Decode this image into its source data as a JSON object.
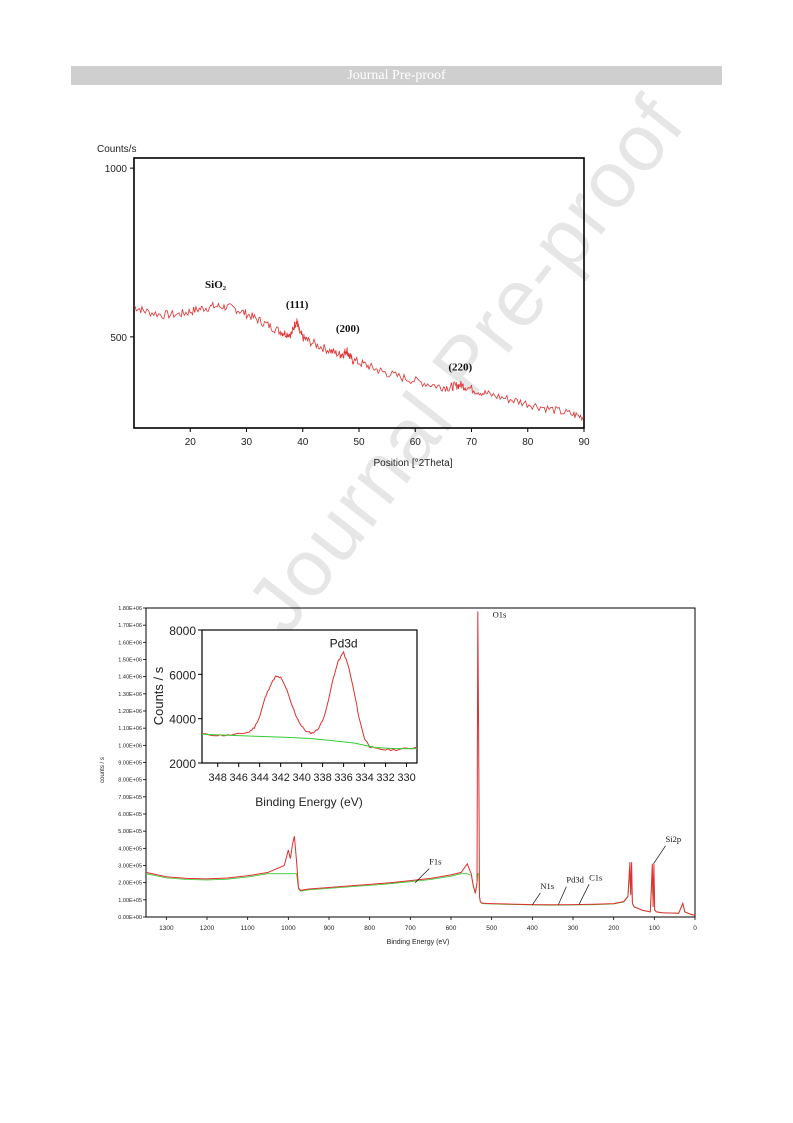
{
  "header": {
    "banner_text": "Journal Pre-proof"
  },
  "watermark_text": "Journal Pre-proof",
  "chart_data": [
    {
      "type": "line",
      "title": "",
      "ylabel": "Counts/s",
      "xlabel": "Position [°2Theta]",
      "xlim": [
        10,
        90
      ],
      "ylim": [
        230,
        1030
      ],
      "xticks": [
        20,
        30,
        40,
        50,
        60,
        70,
        80,
        90
      ],
      "xtick_labels": [
        "20",
        "30",
        "40",
        "50",
        "60",
        "70",
        "80",
        "90"
      ],
      "yticks": [
        500,
        1000
      ],
      "ytick_labels": [
        "500",
        "1000"
      ],
      "grid": false,
      "line_color": "#e03030",
      "series": [
        {
          "x": [
            10,
            12,
            15,
            18,
            20,
            22,
            24,
            26,
            28,
            30,
            32,
            34,
            36,
            37,
            38,
            38.6,
            39,
            39.4,
            40,
            41,
            43,
            45,
            46.5,
            47.3,
            47.8,
            48.3,
            49,
            51,
            53,
            55,
            58,
            61,
            64,
            66,
            67,
            68,
            69,
            71,
            73,
            76,
            79,
            82,
            85,
            88,
            90
          ],
          "y": [
            590,
            576,
            565,
            567,
            575,
            584,
            590,
            590,
            583,
            568,
            551,
            533,
            516,
            510,
            508,
            538,
            545,
            515,
            498,
            488,
            472,
            458,
            448,
            450,
            462,
            442,
            430,
            418,
            404,
            392,
            378,
            366,
            354,
            350,
            354,
            358,
            352,
            340,
            330,
            318,
            306,
            294,
            282,
            270,
            262
          ]
        }
      ],
      "annotations": [
        {
          "text": "SiO₂",
          "x": 24.5,
          "y": 645
        },
        {
          "text": "(111)",
          "x": 39,
          "y": 585
        },
        {
          "text": "(200)",
          "x": 48,
          "y": 515
        },
        {
          "text": "(220)",
          "x": 68,
          "y": 400
        }
      ]
    },
    {
      "type": "line",
      "title": "",
      "ylabel": "counts / s",
      "xlabel": "Binding Energy (eV)",
      "xlim": [
        1350,
        0
      ],
      "ylim": [
        0,
        1800000
      ],
      "xticks": [
        1300,
        1200,
        1100,
        1000,
        900,
        800,
        700,
        600,
        500,
        400,
        300,
        200,
        100,
        0
      ],
      "xtick_labels": [
        "1300",
        "1200",
        "1100",
        "1000",
        "900",
        "800",
        "700",
        "600",
        "500",
        "400",
        "300",
        "200",
        "100",
        "0"
      ],
      "yticks": [
        0,
        100000,
        200000,
        300000,
        400000,
        500000,
        600000,
        700000,
        800000,
        900000,
        1000000,
        1100000,
        1200000,
        1300000,
        1400000,
        1500000,
        1600000,
        1700000,
        1800000
      ],
      "ytick_labels": [
        "0.00E+00",
        "1.00E+05",
        "2.00E+05",
        "3.00E+05",
        "4.00E+05",
        "5.00E+05",
        "6.00E+05",
        "7.00E+05",
        "8.00E+05",
        "9.00E+05",
        "1.00E+06",
        "1.10E+06",
        "1.20E+06",
        "1.30E+06",
        "1.40E+06",
        "1.50E+06",
        "1.60E+06",
        "1.70E+06",
        "1.80E+06"
      ],
      "grid": false,
      "line_color": "#e03030",
      "background_color": "#33cc33",
      "series": [
        {
          "x": [
            1350,
            1300,
            1250,
            1200,
            1150,
            1100,
            1050,
            1010,
            1000,
            995,
            990,
            985,
            980,
            975,
            970,
            950,
            900,
            850,
            800,
            750,
            700,
            650,
            600,
            575,
            560,
            550,
            545,
            540,
            536,
            534,
            532,
            530,
            528,
            525,
            520,
            500,
            450,
            400,
            350,
            300,
            250,
            200,
            175,
            165,
            160,
            158,
            156,
            154,
            150,
            130,
            110,
            105,
            103,
            101,
            99,
            95,
            80,
            40,
            30,
            25,
            10,
            0
          ],
          "y": [
            260000,
            235000,
            225000,
            222000,
            227000,
            240000,
            260000,
            300000,
            390000,
            340000,
            420000,
            470000,
            330000,
            170000,
            155000,
            163000,
            172000,
            181000,
            190000,
            200000,
            212000,
            225000,
            245000,
            260000,
            310000,
            250000,
            180000,
            140000,
            200000,
            1780000,
            1000000,
            120000,
            90000,
            82000,
            80000,
            78000,
            75000,
            72000,
            71000,
            72000,
            74000,
            78000,
            90000,
            120000,
            320000,
            130000,
            320000,
            80000,
            60000,
            40000,
            30000,
            310000,
            60000,
            310000,
            40000,
            30000,
            25000,
            22000,
            80000,
            30000,
            15000,
            10000
          ]
        }
      ],
      "annotations": [
        {
          "text": "O1s",
          "x": 532,
          "y": 1780000
        },
        {
          "text": "F1s",
          "x": 688,
          "y": 200000
        },
        {
          "text": "N1s",
          "x": 400,
          "y": 70000
        },
        {
          "text": "Pd3d",
          "x": 336,
          "y": 72000
        },
        {
          "text": "C1s",
          "x": 285,
          "y": 74000
        },
        {
          "text": "Si2p",
          "x": 102,
          "y": 310000
        }
      ]
    },
    {
      "type": "line",
      "title": "",
      "ylabel": "Counts / s",
      "xlabel": "Binding Energy (eV)",
      "xlim": [
        349.5,
        329
      ],
      "ylim": [
        2000,
        8000
      ],
      "xticks": [
        348,
        346,
        344,
        342,
        340,
        338,
        336,
        334,
        332,
        330
      ],
      "xtick_labels": [
        "348",
        "346",
        "344",
        "342",
        "340",
        "338",
        "336",
        "334",
        "332",
        "330"
      ],
      "yticks": [
        2000,
        4000,
        6000,
        8000
      ],
      "ytick_labels": [
        "2000",
        "4000",
        "6000",
        "8000"
      ],
      "grid": false,
      "series": [
        {
          "name": "",
          "color": "#e03030",
          "x": [
            349.5,
            348,
            347,
            346,
            345,
            344.5,
            344,
            343.5,
            343,
            342.5,
            342,
            341.5,
            341,
            340.5,
            340,
            339.5,
            339,
            338.5,
            338,
            337.5,
            337,
            336.5,
            336,
            335.5,
            335,
            334.5,
            334,
            333.5,
            333,
            332,
            331,
            330,
            329
          ],
          "y": [
            3300,
            3250,
            3250,
            3300,
            3400,
            3600,
            4100,
            4900,
            5500,
            5900,
            5850,
            5400,
            4700,
            4100,
            3650,
            3400,
            3350,
            3500,
            3900,
            4700,
            5800,
            6600,
            7000,
            6300,
            5200,
            4000,
            3100,
            2750,
            2650,
            2600,
            2600,
            2650,
            2700
          ]
        },
        {
          "name": "",
          "color": "#33cc33",
          "x": [
            349.5,
            347,
            344,
            341,
            339,
            337,
            335,
            334,
            333,
            331,
            329
          ],
          "y": [
            3300,
            3250,
            3200,
            3150,
            3100,
            3000,
            2900,
            2800,
            2700,
            2650,
            2650
          ]
        }
      ],
      "annotations": [
        {
          "text": "Pd3d",
          "x": 336,
          "y": 7200
        }
      ]
    }
  ]
}
